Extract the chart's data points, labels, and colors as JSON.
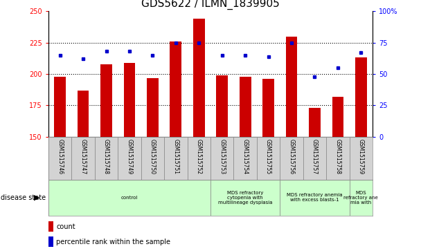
{
  "title": "GDS5622 / ILMN_1839905",
  "samples": [
    "GSM1515746",
    "GSM1515747",
    "GSM1515748",
    "GSM1515749",
    "GSM1515750",
    "GSM1515751",
    "GSM1515752",
    "GSM1515753",
    "GSM1515754",
    "GSM1515755",
    "GSM1515756",
    "GSM1515757",
    "GSM1515758",
    "GSM1515759"
  ],
  "counts": [
    198,
    187,
    208,
    209,
    197,
    226,
    244,
    199,
    198,
    196,
    230,
    173,
    182,
    213
  ],
  "percentile_ranks": [
    65,
    62,
    68,
    68,
    65,
    75,
    75,
    65,
    65,
    64,
    75,
    48,
    55,
    67
  ],
  "ylim_left": [
    150,
    250
  ],
  "ylim_right": [
    0,
    100
  ],
  "yticks_left": [
    150,
    175,
    200,
    225,
    250
  ],
  "yticks_right": [
    0,
    25,
    50,
    75,
    100
  ],
  "bar_color": "#cc0000",
  "dot_color": "#0000cc",
  "bar_width": 0.5,
  "disease_state_label": "disease state",
  "legend_count_label": "count",
  "legend_percentile_label": "percentile rank within the sample",
  "background_color": "#ffffff",
  "title_fontsize": 11,
  "tick_fontsize": 7,
  "label_fontsize": 7,
  "disease_data": [
    [
      0,
      7,
      "control"
    ],
    [
      7,
      10,
      "MDS refractory\ncytopenia with\nmultilineage dysplasia"
    ],
    [
      10,
      13,
      "MDS refractory anemia\nwith excess blasts-1"
    ],
    [
      13,
      14,
      "MDS\nrefractory ane\nmia with"
    ]
  ]
}
